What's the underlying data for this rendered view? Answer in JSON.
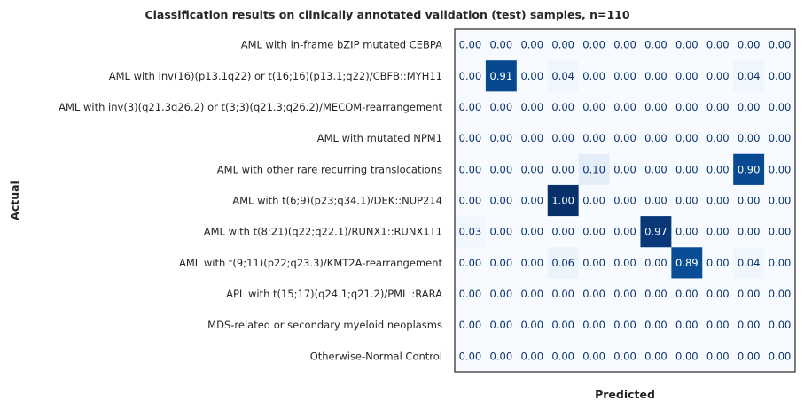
{
  "chart_data": {
    "type": "heatmap",
    "title": "Classification results on clinically annotated validation (test) samples, n=110",
    "xlabel": "Predicted",
    "ylabel": "Actual",
    "rows": [
      "AML with in-frame bZIP mutated CEBPA",
      "AML with inv(16)(p13.1q22) or t(16;16)(p13.1;q22)/CBFB::MYH11",
      "AML with inv(3)(q21.3q26.2) or t(3;3)(q21.3;q26.2)/MECOM-rearrangement",
      "AML with mutated NPM1",
      "AML with other rare recurring translocations",
      "AML with t(6;9)(p23;q34.1)/DEK::NUP214",
      "AML with t(8;21)(q22;q22.1)/RUNX1::RUNX1T1",
      "AML with t(9;11)(p22;q23.3)/KMT2A-rearrangement",
      "APL with t(15;17)(q24.1;q21.2)/PML::RARA",
      "MDS-related or secondary myeloid neoplasms",
      "Otherwise-Normal Control"
    ],
    "values": [
      [
        0.0,
        0.0,
        0.0,
        0.0,
        0.0,
        0.0,
        0.0,
        0.0,
        0.0,
        0.0,
        0.0
      ],
      [
        0.0,
        0.91,
        0.0,
        0.04,
        0.0,
        0.0,
        0.0,
        0.0,
        0.0,
        0.04,
        0.0
      ],
      [
        0.0,
        0.0,
        0.0,
        0.0,
        0.0,
        0.0,
        0.0,
        0.0,
        0.0,
        0.0,
        0.0
      ],
      [
        0.0,
        0.0,
        0.0,
        0.0,
        0.0,
        0.0,
        0.0,
        0.0,
        0.0,
        0.0,
        0.0
      ],
      [
        0.0,
        0.0,
        0.0,
        0.0,
        0.1,
        0.0,
        0.0,
        0.0,
        0.0,
        0.9,
        0.0
      ],
      [
        0.0,
        0.0,
        0.0,
        1.0,
        0.0,
        0.0,
        0.0,
        0.0,
        0.0,
        0.0,
        0.0
      ],
      [
        0.03,
        0.0,
        0.0,
        0.0,
        0.0,
        0.0,
        0.97,
        0.0,
        0.0,
        0.0,
        0.0
      ],
      [
        0.0,
        0.0,
        0.0,
        0.06,
        0.0,
        0.0,
        0.0,
        0.89,
        0.0,
        0.04,
        0.0
      ],
      [
        0.0,
        0.0,
        0.0,
        0.0,
        0.0,
        0.0,
        0.0,
        0.0,
        0.0,
        0.0,
        0.0
      ],
      [
        0.0,
        0.0,
        0.0,
        0.0,
        0.0,
        0.0,
        0.0,
        0.0,
        0.0,
        0.0,
        0.0
      ],
      [
        0.0,
        0.0,
        0.0,
        0.0,
        0.0,
        0.0,
        0.0,
        0.0,
        0.0,
        0.0,
        0.0
      ]
    ],
    "value_range": [
      0,
      1
    ],
    "colormap": "Blues",
    "x_ticks_visible": false,
    "grid": false
  }
}
